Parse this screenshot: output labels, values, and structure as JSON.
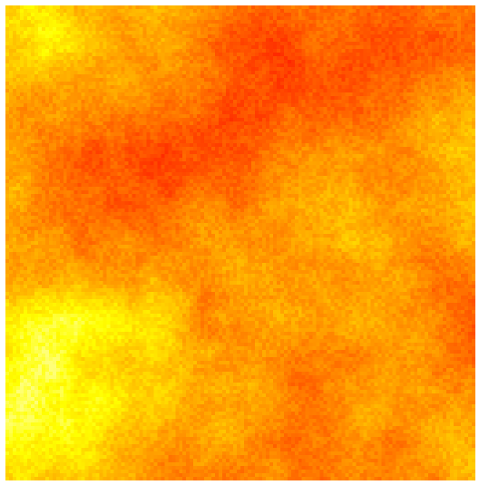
{
  "image": {
    "subject": "heat-noise-texture",
    "palette": [
      "#ff0000",
      "#ff3300",
      "#ff6600",
      "#ff9900",
      "#ffcc00",
      "#ffff00",
      "#ffff66"
    ],
    "background": "#ffffff"
  }
}
